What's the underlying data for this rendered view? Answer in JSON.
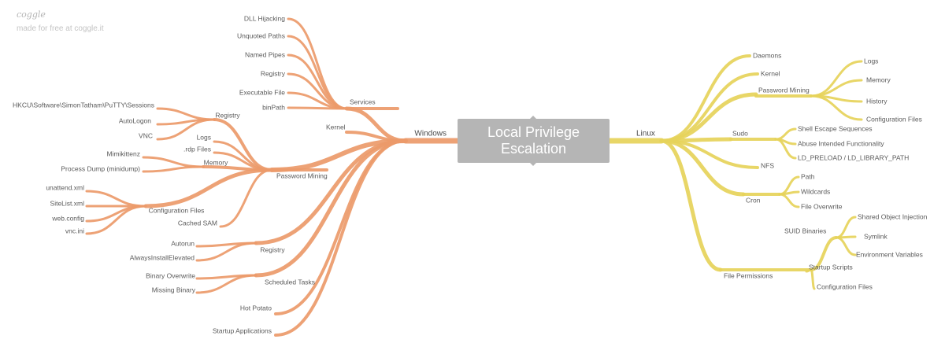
{
  "brand": {
    "name": "coggle",
    "tagline": "made for free at coggle.it"
  },
  "root": {
    "line1": "Local Privilege",
    "line2": "Escalation"
  },
  "windows": {
    "label": "Windows",
    "services": {
      "label": "Services",
      "items": [
        "DLL Hijacking",
        "Unquoted Paths",
        "Named Pipes",
        "Registry",
        "Executable File",
        "binPath"
      ]
    },
    "kernel": "Kernel",
    "password_mining": {
      "label": "Password Mining",
      "registry": {
        "label": "Registry",
        "items": [
          "HKCU\\Software\\SimonTatham\\PuTTY\\Sessions",
          "AutoLogon",
          "VNC"
        ]
      },
      "logs": "Logs",
      "rdp_files": ".rdp Files",
      "memory": {
        "label": "Memory",
        "items": [
          "Mimikittenz",
          "Process Dump (minidump)"
        ]
      },
      "configuration_files": {
        "label": "Configuration Files",
        "items": [
          "unattend.xml",
          "SiteList.xml",
          "web.config",
          "vnc.ini"
        ]
      },
      "cached_sam": "Cached SAM"
    },
    "registry": {
      "label": "Registry",
      "items": [
        "Autorun",
        "AlwaysInstallElevated"
      ]
    },
    "scheduled_tasks": {
      "label": "Scheduled Tasks",
      "items": [
        "Binary Overwrite",
        "Missing Binary"
      ]
    },
    "hot_potato": "Hot Potato",
    "startup_applications": "Startup Applications"
  },
  "linux": {
    "label": "Linux",
    "daemons": "Daemons",
    "kernel": "Kernel",
    "password_mining": {
      "label": "Password Mining",
      "items": [
        "Logs",
        "Memory",
        "History",
        "Configuration Files"
      ]
    },
    "sudo": {
      "label": "Sudo",
      "items": [
        "Shell Escape Sequences",
        "Abuse Intended Functionality",
        "LD_PRELOAD / LD_LIBRARY_PATH"
      ]
    },
    "nfs": "NFS",
    "cron": {
      "label": "Cron",
      "items": [
        "Path",
        "Wildcards",
        "File Overwrite"
      ]
    },
    "file_permissions": {
      "label": "File Permissions",
      "suid_binaries": {
        "label": "SUID Binaries",
        "items": [
          "Shared Object Injection",
          "Symlink",
          "Environment Variables"
        ]
      },
      "startup_scripts": "Startup Scripts",
      "configuration_files": "Configuration Files"
    }
  },
  "colors": {
    "windows_branch": "#eb9a6a",
    "linux_branch": "#e6d35a",
    "root_box": "#b5b5b5"
  }
}
